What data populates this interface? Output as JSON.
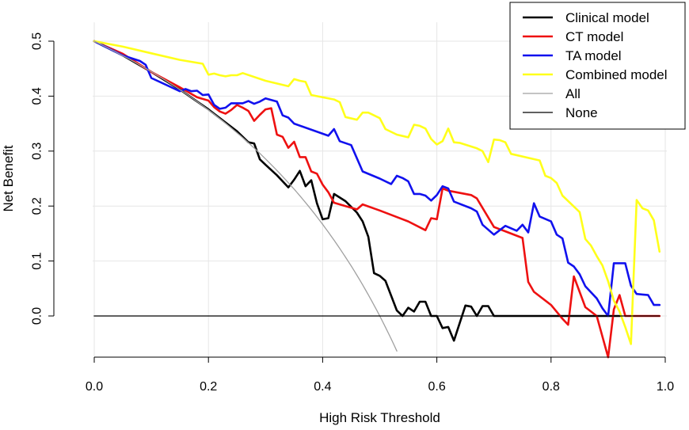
{
  "chart_data": {
    "type": "line",
    "title": "",
    "xlabel": "High Risk Threshold",
    "ylabel": "Net Benefit",
    "xlim": [
      0,
      1
    ],
    "ylim": [
      -0.07,
      0.52
    ],
    "x_ticks": [
      0.0,
      0.2,
      0.4,
      0.6,
      0.8,
      1.0
    ],
    "x_tick_labels": [
      "0.0",
      "0.2",
      "0.4",
      "0.6",
      "0.8",
      "1.0"
    ],
    "y_ticks": [
      0.0,
      0.1,
      0.2,
      0.3,
      0.4,
      0.5
    ],
    "y_tick_labels": [
      "0.0",
      "0.1",
      "0.2",
      "0.3",
      "0.4",
      "0.5"
    ],
    "grid": true,
    "legend_position": "top-right",
    "series": [
      {
        "name": "Clinical model",
        "color": "#000000",
        "width": 2.6,
        "points": [
          [
            0.0,
            0.5
          ],
          [
            0.05,
            0.474
          ],
          [
            0.1,
            0.444
          ],
          [
            0.15,
            0.412
          ],
          [
            0.2,
            0.376
          ],
          [
            0.25,
            0.336
          ],
          [
            0.27,
            0.316
          ],
          [
            0.28,
            0.314
          ],
          [
            0.29,
            0.285
          ],
          [
            0.3,
            0.275
          ],
          [
            0.32,
            0.256
          ],
          [
            0.34,
            0.234
          ],
          [
            0.35,
            0.248
          ],
          [
            0.36,
            0.264
          ],
          [
            0.37,
            0.236
          ],
          [
            0.38,
            0.247
          ],
          [
            0.39,
            0.205
          ],
          [
            0.4,
            0.176
          ],
          [
            0.41,
            0.178
          ],
          [
            0.42,
            0.222
          ],
          [
            0.44,
            0.209
          ],
          [
            0.46,
            0.188
          ],
          [
            0.47,
            0.172
          ],
          [
            0.48,
            0.144
          ],
          [
            0.49,
            0.078
          ],
          [
            0.5,
            0.073
          ],
          [
            0.51,
            0.064
          ],
          [
            0.53,
            0.01
          ],
          [
            0.54,
            0.0
          ],
          [
            0.55,
            0.015
          ],
          [
            0.56,
            0.008
          ],
          [
            0.57,
            0.026
          ],
          [
            0.58,
            0.026
          ],
          [
            0.59,
            0.0
          ],
          [
            0.6,
            0.0
          ],
          [
            0.61,
            -0.022
          ],
          [
            0.62,
            -0.02
          ],
          [
            0.63,
            -0.045
          ],
          [
            0.65,
            0.019
          ],
          [
            0.66,
            0.017
          ],
          [
            0.67,
            0.0
          ],
          [
            0.68,
            0.018
          ],
          [
            0.69,
            0.018
          ],
          [
            0.7,
            0.0
          ],
          [
            0.8,
            0.0
          ],
          [
            0.9,
            0.0
          ],
          [
            0.92,
            0.0
          ]
        ]
      },
      {
        "name": "CT model",
        "color": "#ee1111",
        "width": 2.6,
        "points": [
          [
            0.0,
            0.5
          ],
          [
            0.05,
            0.477
          ],
          [
            0.1,
            0.444
          ],
          [
            0.15,
            0.416
          ],
          [
            0.18,
            0.398
          ],
          [
            0.2,
            0.392
          ],
          [
            0.21,
            0.38
          ],
          [
            0.22,
            0.372
          ],
          [
            0.23,
            0.368
          ],
          [
            0.24,
            0.375
          ],
          [
            0.25,
            0.384
          ],
          [
            0.26,
            0.379
          ],
          [
            0.27,
            0.373
          ],
          [
            0.28,
            0.355
          ],
          [
            0.29,
            0.366
          ],
          [
            0.3,
            0.376
          ],
          [
            0.31,
            0.378
          ],
          [
            0.32,
            0.33
          ],
          [
            0.33,
            0.326
          ],
          [
            0.34,
            0.306
          ],
          [
            0.35,
            0.317
          ],
          [
            0.36,
            0.289
          ],
          [
            0.37,
            0.289
          ],
          [
            0.38,
            0.263
          ],
          [
            0.39,
            0.259
          ],
          [
            0.4,
            0.239
          ],
          [
            0.41,
            0.225
          ],
          [
            0.42,
            0.206
          ],
          [
            0.44,
            0.2
          ],
          [
            0.46,
            0.194
          ],
          [
            0.47,
            0.203
          ],
          [
            0.5,
            0.192
          ],
          [
            0.55,
            0.172
          ],
          [
            0.58,
            0.156
          ],
          [
            0.59,
            0.178
          ],
          [
            0.6,
            0.176
          ],
          [
            0.61,
            0.232
          ],
          [
            0.62,
            0.228
          ],
          [
            0.66,
            0.22
          ],
          [
            0.67,
            0.214
          ],
          [
            0.7,
            0.162
          ],
          [
            0.75,
            0.142
          ],
          [
            0.76,
            0.062
          ],
          [
            0.77,
            0.044
          ],
          [
            0.8,
            0.02
          ],
          [
            0.82,
            -0.005
          ],
          [
            0.83,
            -0.016
          ],
          [
            0.84,
            0.072
          ],
          [
            0.86,
            0.016
          ],
          [
            0.88,
            0.0
          ],
          [
            0.9,
            -0.075
          ],
          [
            0.91,
            0.012
          ],
          [
            0.92,
            0.038
          ],
          [
            0.93,
            0.0
          ],
          [
            0.96,
            0.0
          ],
          [
            0.99,
            0.0
          ]
        ]
      },
      {
        "name": "TA model",
        "color": "#1111ee",
        "width": 2.6,
        "points": [
          [
            0.0,
            0.5
          ],
          [
            0.05,
            0.474
          ],
          [
            0.08,
            0.464
          ],
          [
            0.09,
            0.457
          ],
          [
            0.1,
            0.433
          ],
          [
            0.15,
            0.409
          ],
          [
            0.16,
            0.413
          ],
          [
            0.17,
            0.409
          ],
          [
            0.18,
            0.41
          ],
          [
            0.19,
            0.402
          ],
          [
            0.2,
            0.403
          ],
          [
            0.21,
            0.384
          ],
          [
            0.22,
            0.377
          ],
          [
            0.23,
            0.379
          ],
          [
            0.24,
            0.387
          ],
          [
            0.26,
            0.387
          ],
          [
            0.27,
            0.391
          ],
          [
            0.28,
            0.386
          ],
          [
            0.29,
            0.39
          ],
          [
            0.3,
            0.396
          ],
          [
            0.32,
            0.39
          ],
          [
            0.33,
            0.365
          ],
          [
            0.34,
            0.361
          ],
          [
            0.35,
            0.35
          ],
          [
            0.41,
            0.328
          ],
          [
            0.42,
            0.34
          ],
          [
            0.43,
            0.318
          ],
          [
            0.45,
            0.311
          ],
          [
            0.47,
            0.263
          ],
          [
            0.5,
            0.25
          ],
          [
            0.52,
            0.24
          ],
          [
            0.53,
            0.255
          ],
          [
            0.54,
            0.251
          ],
          [
            0.55,
            0.245
          ],
          [
            0.56,
            0.222
          ],
          [
            0.57,
            0.222
          ],
          [
            0.58,
            0.219
          ],
          [
            0.59,
            0.21
          ],
          [
            0.6,
            0.22
          ],
          [
            0.61,
            0.236
          ],
          [
            0.62,
            0.232
          ],
          [
            0.63,
            0.208
          ],
          [
            0.66,
            0.196
          ],
          [
            0.67,
            0.19
          ],
          [
            0.68,
            0.166
          ],
          [
            0.7,
            0.148
          ],
          [
            0.72,
            0.164
          ],
          [
            0.74,
            0.155
          ],
          [
            0.75,
            0.166
          ],
          [
            0.76,
            0.152
          ],
          [
            0.77,
            0.205
          ],
          [
            0.78,
            0.181
          ],
          [
            0.8,
            0.172
          ],
          [
            0.81,
            0.148
          ],
          [
            0.82,
            0.141
          ],
          [
            0.83,
            0.097
          ],
          [
            0.84,
            0.09
          ],
          [
            0.85,
            0.076
          ],
          [
            0.86,
            0.054
          ],
          [
            0.88,
            0.032
          ],
          [
            0.89,
            0.014
          ],
          [
            0.9,
            0.0
          ],
          [
            0.91,
            0.096
          ],
          [
            0.93,
            0.096
          ],
          [
            0.94,
            0.055
          ],
          [
            0.95,
            0.04
          ],
          [
            0.96,
            0.039
          ],
          [
            0.97,
            0.038
          ],
          [
            0.98,
            0.02
          ],
          [
            0.99,
            0.02
          ]
        ]
      },
      {
        "name": "Combined model",
        "color": "#ffff1a",
        "width": 2.6,
        "points": [
          [
            0.0,
            0.5
          ],
          [
            0.05,
            0.49
          ],
          [
            0.1,
            0.478
          ],
          [
            0.15,
            0.466
          ],
          [
            0.19,
            0.459
          ],
          [
            0.2,
            0.439
          ],
          [
            0.21,
            0.441
          ],
          [
            0.22,
            0.438
          ],
          [
            0.23,
            0.436
          ],
          [
            0.24,
            0.438
          ],
          [
            0.25,
            0.438
          ],
          [
            0.26,
            0.442
          ],
          [
            0.3,
            0.428
          ],
          [
            0.34,
            0.418
          ],
          [
            0.35,
            0.431
          ],
          [
            0.36,
            0.428
          ],
          [
            0.37,
            0.426
          ],
          [
            0.38,
            0.402
          ],
          [
            0.42,
            0.394
          ],
          [
            0.43,
            0.389
          ],
          [
            0.44,
            0.362
          ],
          [
            0.46,
            0.357
          ],
          [
            0.47,
            0.37
          ],
          [
            0.48,
            0.37
          ],
          [
            0.5,
            0.36
          ],
          [
            0.51,
            0.34
          ],
          [
            0.53,
            0.33
          ],
          [
            0.55,
            0.325
          ],
          [
            0.56,
            0.348
          ],
          [
            0.57,
            0.346
          ],
          [
            0.58,
            0.341
          ],
          [
            0.59,
            0.322
          ],
          [
            0.6,
            0.312
          ],
          [
            0.61,
            0.318
          ],
          [
            0.62,
            0.341
          ],
          [
            0.63,
            0.316
          ],
          [
            0.64,
            0.315
          ],
          [
            0.67,
            0.305
          ],
          [
            0.68,
            0.3
          ],
          [
            0.69,
            0.28
          ],
          [
            0.7,
            0.321
          ],
          [
            0.71,
            0.32
          ],
          [
            0.72,
            0.316
          ],
          [
            0.73,
            0.295
          ],
          [
            0.78,
            0.283
          ],
          [
            0.79,
            0.255
          ],
          [
            0.8,
            0.251
          ],
          [
            0.81,
            0.242
          ],
          [
            0.82,
            0.219
          ],
          [
            0.85,
            0.189
          ],
          [
            0.86,
            0.14
          ],
          [
            0.87,
            0.128
          ],
          [
            0.88,
            0.109
          ],
          [
            0.89,
            0.092
          ],
          [
            0.9,
            0.063
          ],
          [
            0.91,
            0.028
          ],
          [
            0.92,
            0.008
          ],
          [
            0.93,
            -0.02
          ],
          [
            0.94,
            -0.051
          ],
          [
            0.95,
            0.211
          ],
          [
            0.96,
            0.196
          ],
          [
            0.97,
            0.192
          ],
          [
            0.98,
            0.174
          ],
          [
            0.99,
            0.117
          ]
        ]
      },
      {
        "name": "All",
        "color": "#a0a0a0",
        "width": 1.3,
        "formula": "0.5 - 0.5 * p / (1 - p)"
      },
      {
        "name": "None",
        "color": "#000000",
        "width": 1.3,
        "points": [
          [
            0.0,
            0.0
          ],
          [
            0.99,
            0.0
          ]
        ]
      }
    ]
  }
}
